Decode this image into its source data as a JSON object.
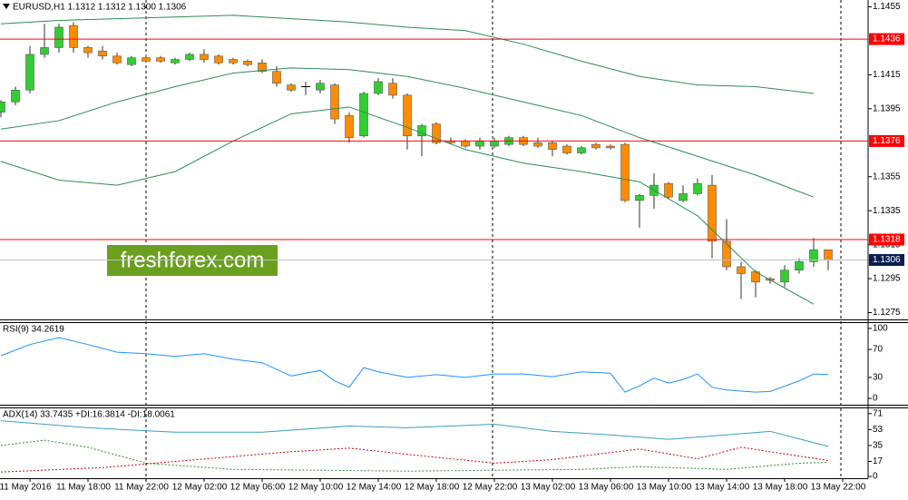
{
  "chart_data": [
    {
      "type": "candlestick",
      "title": "EURUSD,H1  1.1312 1.1312 1.1300 1.1306",
      "categories": [
        null,
        null,
        null,
        null,
        null,
        null,
        null,
        null,
        null,
        null,
        null,
        null,
        null,
        null,
        null,
        null,
        null,
        null,
        null,
        null,
        null,
        null,
        null,
        null,
        null,
        null,
        null,
        null,
        null,
        null,
        null,
        null,
        null,
        null,
        null,
        null,
        null,
        null,
        null,
        null,
        null,
        null,
        null,
        null,
        null,
        null,
        null,
        null,
        null,
        null,
        null,
        null,
        null,
        null,
        null,
        null,
        null,
        null
      ],
      "open": [
        1.1393,
        1.1399,
        1.1406,
        1.1427,
        1.1431,
        1.1444,
        1.1431,
        1.1429,
        1.1426,
        1.1421,
        1.1425,
        1.1425,
        1.1422,
        1.1424,
        1.1427,
        1.1426,
        1.1424,
        1.1423,
        1.1422,
        1.1417,
        1.1409,
        1.1408,
        1.1406,
        1.1409,
        1.1391,
        1.1379,
        1.1404,
        1.141,
        1.1403,
        1.1379,
        1.1386,
        1.1376,
        1.1376,
        1.1373,
        1.1373,
        1.1374,
        1.1378,
        1.1375,
        1.1375,
        1.1373,
        1.1369,
        1.1374,
        1.1373,
        1.1374,
        1.1341,
        1.1344,
        1.1351,
        1.1341,
        1.1345,
        1.135,
        1.1317,
        1.1302,
        1.1299,
        1.1295,
        1.1293,
        1.13,
        1.1305,
        1.1312
      ],
      "high": [
        1.14,
        1.1408,
        1.1432,
        1.1445,
        1.1445,
        1.1446,
        1.1432,
        1.1432,
        1.1428,
        1.1426,
        1.1427,
        1.1426,
        1.1425,
        1.1428,
        1.143,
        1.1427,
        1.1425,
        1.1424,
        1.1424,
        1.142,
        1.141,
        1.1411,
        1.1412,
        1.141,
        1.1393,
        1.1405,
        1.1413,
        1.1413,
        1.1404,
        1.1386,
        1.1387,
        1.1378,
        1.1377,
        1.1378,
        1.1378,
        1.1379,
        1.1379,
        1.1378,
        1.1376,
        1.1374,
        1.1373,
        1.1375,
        1.1374,
        1.1375,
        1.1345,
        1.1357,
        1.1352,
        1.135,
        1.1354,
        1.1356,
        1.133,
        1.1305,
        1.13,
        1.1296,
        1.1303,
        1.1307,
        1.1319,
        1.1312
      ],
      "low": [
        1.139,
        1.1397,
        1.1404,
        1.1425,
        1.1428,
        1.1428,
        1.1425,
        1.1424,
        1.1421,
        1.142,
        1.1422,
        1.1422,
        1.1421,
        1.1423,
        1.1422,
        1.1421,
        1.1421,
        1.142,
        1.1416,
        1.1408,
        1.1405,
        1.1403,
        1.1404,
        1.1386,
        1.1375,
        1.1378,
        1.1403,
        1.1401,
        1.1371,
        1.1367,
        1.1374,
        1.1374,
        1.1372,
        1.1371,
        1.1372,
        1.1373,
        1.1373,
        1.1372,
        1.1367,
        1.1368,
        1.1368,
        1.1371,
        1.1371,
        1.134,
        1.1325,
        1.1336,
        1.1342,
        1.134,
        1.1344,
        1.1307,
        1.13,
        1.1283,
        1.1284,
        1.1292,
        1.129,
        1.1298,
        1.1302,
        1.13
      ],
      "close": [
        1.1399,
        1.1406,
        1.1427,
        1.1431,
        1.1443,
        1.1431,
        1.1428,
        1.1426,
        1.1422,
        1.1425,
        1.1423,
        1.1423,
        1.1424,
        1.1427,
        1.1424,
        1.1422,
        1.1422,
        1.1421,
        1.1417,
        1.141,
        1.1406,
        1.1408,
        1.141,
        1.1389,
        1.1378,
        1.1404,
        1.1411,
        1.1403,
        1.1379,
        1.1385,
        1.1375,
        1.1375,
        1.1373,
        1.1376,
        1.1376,
        1.1378,
        1.1374,
        1.1373,
        1.1371,
        1.1369,
        1.1372,
        1.1372,
        1.1372,
        1.1341,
        1.1344,
        1.135,
        1.1343,
        1.1345,
        1.1351,
        1.1317,
        1.1302,
        1.1298,
        1.1293,
        1.1294,
        1.13,
        1.1305,
        1.1312,
        1.1306
      ],
      "up_color": "#32cd32",
      "down_color": "#ff8c00",
      "series": [
        {
          "color": "#2e8b57",
          "x": [
            0,
            4,
            8,
            12,
            16,
            20,
            24,
            28,
            32,
            36,
            40,
            44,
            48,
            52,
            56
          ],
          "values": [
            1.1445,
            1.1447,
            1.1448,
            1.1449,
            1.145,
            1.1448,
            1.1446,
            1.1443,
            1.1441,
            1.1433,
            1.1423,
            1.1414,
            1.1409,
            1.1408,
            1.1404
          ]
        },
        {
          "color": "#2e8b57",
          "x": [
            0,
            4,
            8,
            12,
            16,
            20,
            24,
            28,
            32,
            36,
            40,
            44,
            48,
            52,
            56
          ],
          "values": [
            1.1383,
            1.1388,
            1.1399,
            1.1408,
            1.1416,
            1.1419,
            1.1418,
            1.1414,
            1.1407,
            1.1399,
            1.1391,
            1.1378,
            1.1367,
            1.1356,
            1.1343
          ]
        },
        {
          "color": "#2e8b57",
          "x": [
            0,
            4,
            8,
            12,
            16,
            20,
            24,
            28,
            32,
            36,
            40,
            44,
            48,
            52,
            56
          ],
          "values": [
            1.1364,
            1.1353,
            1.135,
            1.1358,
            1.1376,
            1.1392,
            1.1396,
            1.1384,
            1.1371,
            1.1363,
            1.1358,
            1.1352,
            1.1332,
            1.1299,
            1.128
          ]
        }
      ],
      "levels": [
        1.1436,
        1.1376,
        1.1318
      ],
      "level_color": "#ff0000",
      "last_price": 1.1306,
      "watermark": "freshforex.com",
      "ylim": [
        1.1271,
        1.1459
      ],
      "yticks": [
        1.1455,
        1.1415,
        1.1395,
        1.1355,
        1.1335,
        1.1315,
        1.1295,
        1.1275
      ]
    },
    {
      "type": "line",
      "title": "RSI(9) 34.2619",
      "series": [
        {
          "color": "#1e90ff",
          "x": [
            0,
            2,
            4,
            6,
            8,
            10,
            12,
            14,
            16,
            18,
            20,
            22,
            23,
            24,
            25,
            26,
            28,
            30,
            32,
            34,
            36,
            38,
            40,
            42,
            43,
            44,
            45,
            46,
            47,
            48,
            49,
            50,
            52,
            53,
            55,
            56,
            57
          ],
          "values": [
            61,
            77,
            87,
            77,
            66,
            64,
            60,
            64,
            56,
            51,
            32,
            40,
            25,
            16,
            44,
            38,
            30,
            34,
            30,
            35,
            35,
            31,
            38,
            36,
            9,
            18,
            29,
            22,
            27,
            35,
            16,
            12,
            9,
            10,
            25,
            35,
            34.26
          ]
        }
      ],
      "ylim": [
        -9,
        109
      ],
      "yticks": [
        0,
        30,
        70,
        100
      ]
    },
    {
      "type": "line",
      "title": "ADX(14) 33.7435 +DI:16.3814 -DI:18.0061",
      "series": [
        {
          "color": "#3a9fbf",
          "x": [
            0,
            6,
            12,
            18,
            24,
            28,
            34,
            38,
            42,
            46,
            50,
            53,
            57
          ],
          "values": [
            63,
            55,
            50,
            50,
            57,
            55,
            59,
            51,
            47,
            42,
            47,
            51,
            34
          ]
        },
        {
          "color": "#2e8b2e",
          "dash": true,
          "x": [
            0,
            3,
            6,
            10,
            16,
            22,
            28,
            34,
            40,
            44,
            50,
            55,
            57
          ],
          "values": [
            35,
            41,
            33,
            15,
            8,
            7,
            6,
            7,
            8,
            11,
            8,
            15,
            16
          ]
        },
        {
          "color": "#cc0000",
          "dash": true,
          "x": [
            0,
            7,
            20,
            24,
            28,
            34,
            38,
            44,
            48,
            51,
            55,
            57
          ],
          "values": [
            5,
            10,
            28,
            32,
            25,
            15,
            19,
            31,
            20,
            33,
            23,
            18
          ]
        }
      ],
      "ylim": [
        -2,
        78
      ],
      "yticks": [
        0,
        17,
        35,
        53,
        71
      ],
      "xticks": [
        {
          "value": 2,
          "label": "11 May 2016"
        },
        {
          "value": 6,
          "label": "11 May 18:00"
        },
        {
          "value": 10,
          "label": "11 May 22:00"
        },
        {
          "value": 14,
          "label": "12 May 02:00"
        },
        {
          "value": 18,
          "label": "12 May 06:00"
        },
        {
          "value": 22,
          "label": "12 May 10:00"
        },
        {
          "value": 26,
          "label": "12 May 14:00"
        },
        {
          "value": 30,
          "label": "12 May 18:00"
        },
        {
          "value": 34,
          "label": "12 May 22:00"
        },
        {
          "value": 38,
          "label": "13 May 02:00"
        },
        {
          "value": 42,
          "label": "13 May 06:00"
        },
        {
          "value": 46,
          "label": "13 May 10:00"
        },
        {
          "value": 50,
          "label": "13 May 14:00"
        },
        {
          "value": 54,
          "label": "13 May 18:00"
        },
        {
          "value": 58,
          "label": "13 May 22:00"
        }
      ]
    }
  ]
}
